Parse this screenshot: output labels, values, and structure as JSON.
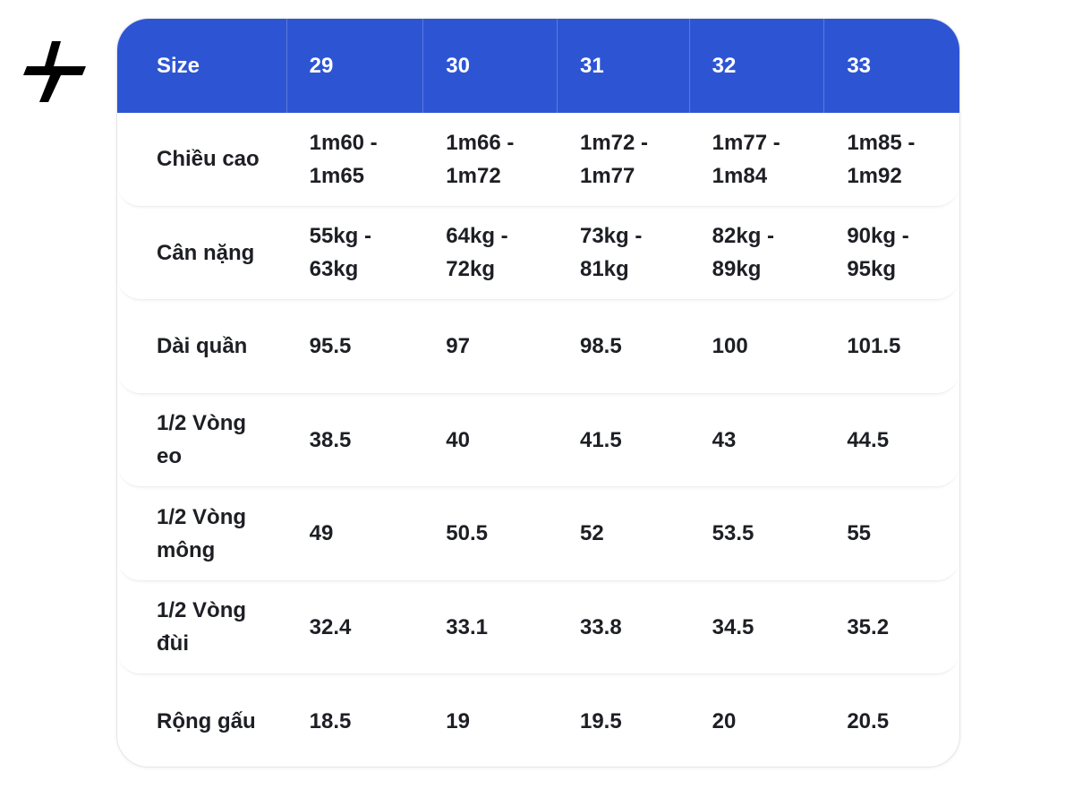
{
  "table": {
    "header": [
      "Size",
      "29",
      "30",
      "31",
      "32",
      "33"
    ],
    "rows": [
      [
        "Chiều cao",
        "1m60 - 1m65",
        "1m66 - 1m72",
        "1m72 - 1m77",
        "1m77 - 1m84",
        "1m85 - 1m92"
      ],
      [
        "Cân nặng",
        "55kg - 63kg",
        "64kg - 72kg",
        "73kg - 81kg",
        "82kg - 89kg",
        "90kg - 95kg"
      ],
      [
        "Dài quần",
        "95.5",
        "97",
        "98.5",
        "100",
        "101.5"
      ],
      [
        "1/2 Vòng eo",
        "38.5",
        "40",
        "41.5",
        "43",
        "44.5"
      ],
      [
        "1/2 Vòng mông",
        "49",
        "50.5",
        "52",
        "53.5",
        "55"
      ],
      [
        "1/2 Vòng đùi",
        "32.4",
        "33.1",
        "33.8",
        "34.5",
        "35.2"
      ],
      [
        "Rộng gấu",
        "18.5",
        "19",
        "19.5",
        "20",
        "20.5"
      ]
    ]
  }
}
